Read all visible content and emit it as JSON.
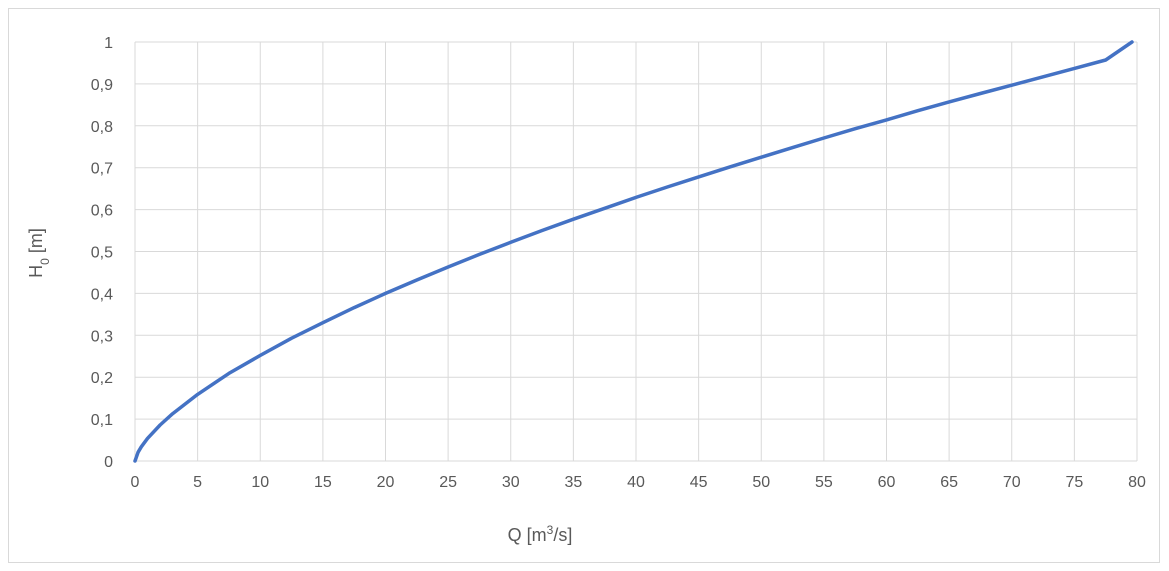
{
  "chart_data": {
    "type": "line",
    "title": "",
    "xlabel": {
      "base": "Q [m",
      "sup": "3",
      "tail": "/s]"
    },
    "ylabel": {
      "base": "H",
      "sub": "0",
      "tail": " [m]"
    },
    "xlim": [
      0,
      80
    ],
    "ylim": [
      0,
      1
    ],
    "x_ticks": [
      0,
      5,
      10,
      15,
      20,
      25,
      30,
      35,
      40,
      45,
      50,
      55,
      60,
      65,
      70,
      75,
      80
    ],
    "y_ticks": [
      0,
      0.1,
      0.2,
      0.3,
      0.4,
      0.5,
      0.6,
      0.7,
      0.8,
      0.9,
      1
    ],
    "x_tick_labels": [
      "0",
      "5",
      "10",
      "15",
      "20",
      "25",
      "30",
      "35",
      "40",
      "45",
      "50",
      "55",
      "60",
      "65",
      "70",
      "75",
      "80"
    ],
    "y_tick_labels": [
      "0",
      "0,1",
      "0,2",
      "0,3",
      "0,4",
      "0,5",
      "0,6",
      "0,7",
      "0,8",
      "0,9",
      "1"
    ],
    "grid": true,
    "legend": "none",
    "series": [
      {
        "color": "#4472c4",
        "x": [
          0,
          0.25,
          0.5,
          1,
          2,
          3,
          5,
          7.5,
          10,
          12.5,
          15,
          17.5,
          20,
          22.5,
          25,
          27.5,
          30,
          32.5,
          35,
          37.5,
          40,
          42.5,
          45,
          47.5,
          50,
          52.5,
          55,
          57.5,
          60,
          62.5,
          65,
          67.5,
          70,
          72.5,
          75,
          77.5,
          79.6
        ],
        "y": [
          0,
          0.021,
          0.034,
          0.054,
          0.086,
          0.113,
          0.159,
          0.209,
          0.252,
          0.293,
          0.33,
          0.366,
          0.4,
          0.432,
          0.463,
          0.493,
          0.522,
          0.55,
          0.577,
          0.603,
          0.629,
          0.654,
          0.678,
          0.702,
          0.725,
          0.748,
          0.771,
          0.793,
          0.814,
          0.836,
          0.857,
          0.877,
          0.897,
          0.917,
          0.937,
          0.957,
          1.0
        ]
      }
    ]
  }
}
